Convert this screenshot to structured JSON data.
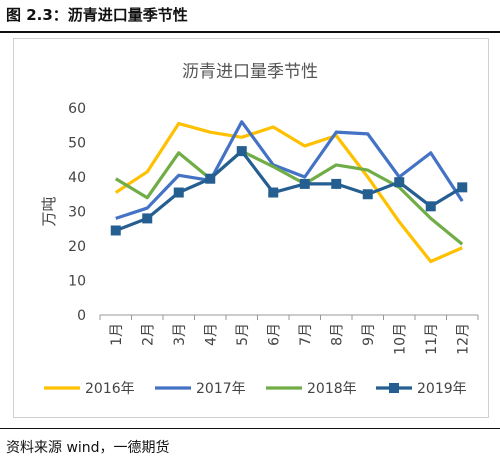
{
  "figure": {
    "title": "图 2.3：沥青进口量季节性",
    "source": "资料来源 wind，一德期货"
  },
  "chart_data": {
    "type": "line",
    "title": "沥青进口量季节性",
    "ylabel": "万吨",
    "xlabel": "",
    "categories": [
      "1月",
      "2月",
      "3月",
      "4月",
      "5月",
      "6月",
      "7月",
      "8月",
      "9月",
      "10月",
      "11月",
      "12月"
    ],
    "yticks": [
      0,
      10,
      20,
      30,
      40,
      50,
      60
    ],
    "ylim": [
      0,
      60
    ],
    "grid": false,
    "legend_position": "bottom",
    "series": [
      {
        "name": "2016年",
        "color": "#FFC000",
        "marker": false,
        "values": [
          35.5,
          41.5,
          55.5,
          53,
          51.5,
          54.5,
          49,
          52,
          40,
          27,
          15.5,
          19.5
        ]
      },
      {
        "name": "2017年",
        "color": "#4472C4",
        "marker": false,
        "values": [
          28,
          31,
          40.5,
          39,
          56,
          43.5,
          40,
          53,
          52.5,
          40,
          47,
          33
        ]
      },
      {
        "name": "2018年",
        "color": "#70AD47",
        "marker": false,
        "values": [
          39.5,
          34,
          47,
          39.5,
          47.5,
          43,
          38,
          43.5,
          42,
          37,
          28,
          20.5
        ]
      },
      {
        "name": "2019年",
        "color": "#255E91",
        "marker": true,
        "values": [
          24.5,
          28,
          35.5,
          39.5,
          47.5,
          35.5,
          38,
          38,
          35,
          38.5,
          31.5,
          37
        ]
      }
    ]
  }
}
